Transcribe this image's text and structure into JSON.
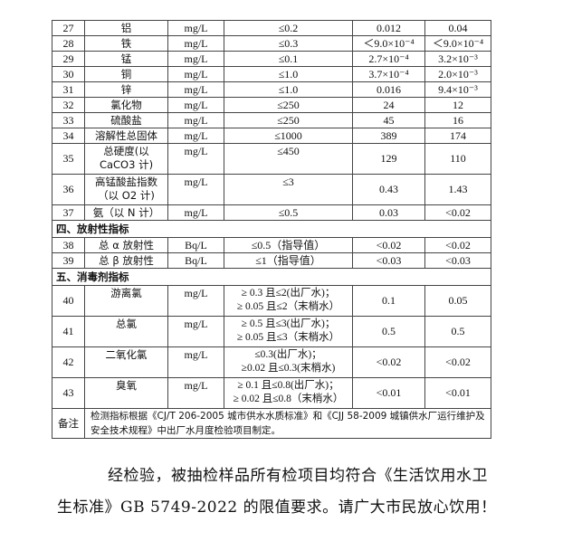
{
  "rows_a": [
    {
      "no": "27",
      "name": "铝",
      "unit": "mg/L",
      "limit": "≤0.2",
      "v1": "0.012",
      "v2": "0.04"
    },
    {
      "no": "28",
      "name": "铁",
      "unit": "mg/L",
      "limit": "≤0.3",
      "v1": "＜9.0×10⁻⁴",
      "v2": "＜9.0×10⁻⁴"
    },
    {
      "no": "29",
      "name": "锰",
      "unit": "mg/L",
      "limit": "≤0.1",
      "v1": "2.7×10⁻⁴",
      "v2": "3.2×10⁻³"
    },
    {
      "no": "30",
      "name": "铜",
      "unit": "mg/L",
      "limit": "≤1.0",
      "v1": "3.7×10⁻⁴",
      "v2": "2.0×10⁻³"
    },
    {
      "no": "31",
      "name": "锌",
      "unit": "mg/L",
      "limit": "≤1.0",
      "v1": "0.016",
      "v2": "9.4×10⁻³"
    },
    {
      "no": "32",
      "name": "氯化物",
      "unit": "mg/L",
      "limit": "≤250",
      "v1": "24",
      "v2": "12"
    },
    {
      "no": "33",
      "name": "硫酸盐",
      "unit": "mg/L",
      "limit": "≤250",
      "v1": "45",
      "v2": "16"
    },
    {
      "no": "34",
      "name": "溶解性总固体",
      "unit": "mg/L",
      "limit": "≤1000",
      "v1": "389",
      "v2": "174"
    },
    {
      "no": "35",
      "name": "总硬度(以 CaCO3 计)",
      "unit": "mg/L",
      "limit": "≤450",
      "v1": "129",
      "v2": "110"
    },
    {
      "no": "36",
      "name": "高锰酸盐指数（以 O2 计)",
      "unit": "mg/L",
      "limit": "≤3",
      "v1": "0.43",
      "v2": "1.43"
    },
    {
      "no": "37",
      "name": "氨（以 N 计）",
      "unit": "mg/L",
      "limit": "≤0.5",
      "v1": "0.03",
      "v2": "<0.02"
    }
  ],
  "section4": "四、放射性指标",
  "rows_b": [
    {
      "no": "38",
      "name": "总 α 放射性",
      "unit": "Bq/L",
      "limit": "≤0.5（指导值）",
      "v1": "<0.02",
      "v2": "<0.02"
    },
    {
      "no": "39",
      "name": "总 β 放射性",
      "unit": "Bq/L",
      "limit": "≤1（指导值）",
      "v1": "<0.03",
      "v2": "<0.03"
    }
  ],
  "section5": "五、消毒剂指标",
  "rows_c": [
    {
      "no": "40",
      "name": "游离氯",
      "unit": "mg/L",
      "limit1": "≥ 0.3 且≤2(出厂水)；",
      "limit2": "≥ 0.05 且≤2（末梢水）",
      "v1": "0.1",
      "v2": "0.05"
    },
    {
      "no": "41",
      "name": "总氯",
      "unit": "mg/L",
      "limit1": "≥ 0.5 且≤3(出厂水)；",
      "limit2": "≥ 0.05 且≤3（末梢水）",
      "v1": "0.5",
      "v2": "0.5"
    },
    {
      "no": "42",
      "name": "二氧化氯",
      "unit": "mg/L",
      "limit1": "≤0.3(出厂水)；",
      "limit2": "≥0.02 且≤0.3(末梢水)",
      "v1": "<0.02",
      "v2": "<0.02"
    },
    {
      "no": "43",
      "name": "臭氧",
      "unit": "mg/L",
      "limit1": "≥ 0.1 且≤0.8(出厂水)；",
      "limit2": "≥ 0.02 且≤0.8（末梢水）",
      "v1": "<0.01",
      "v2": "<0.01"
    }
  ],
  "note_label": "备注",
  "note_text": "检测指标根据《CJ/T 206-2005 城市供水水质标准》和《CJJ 58-2009 城镇供水厂运行维护及安全技术规程》中出厂水月度检验项目制定。",
  "conclusion_line1": "经检验，被抽检样品所有检项目均符合《生活饮用水卫",
  "conclusion_line2": "生标准》GB 5749-2022 的限值要求。请广大市民放心饮用！"
}
